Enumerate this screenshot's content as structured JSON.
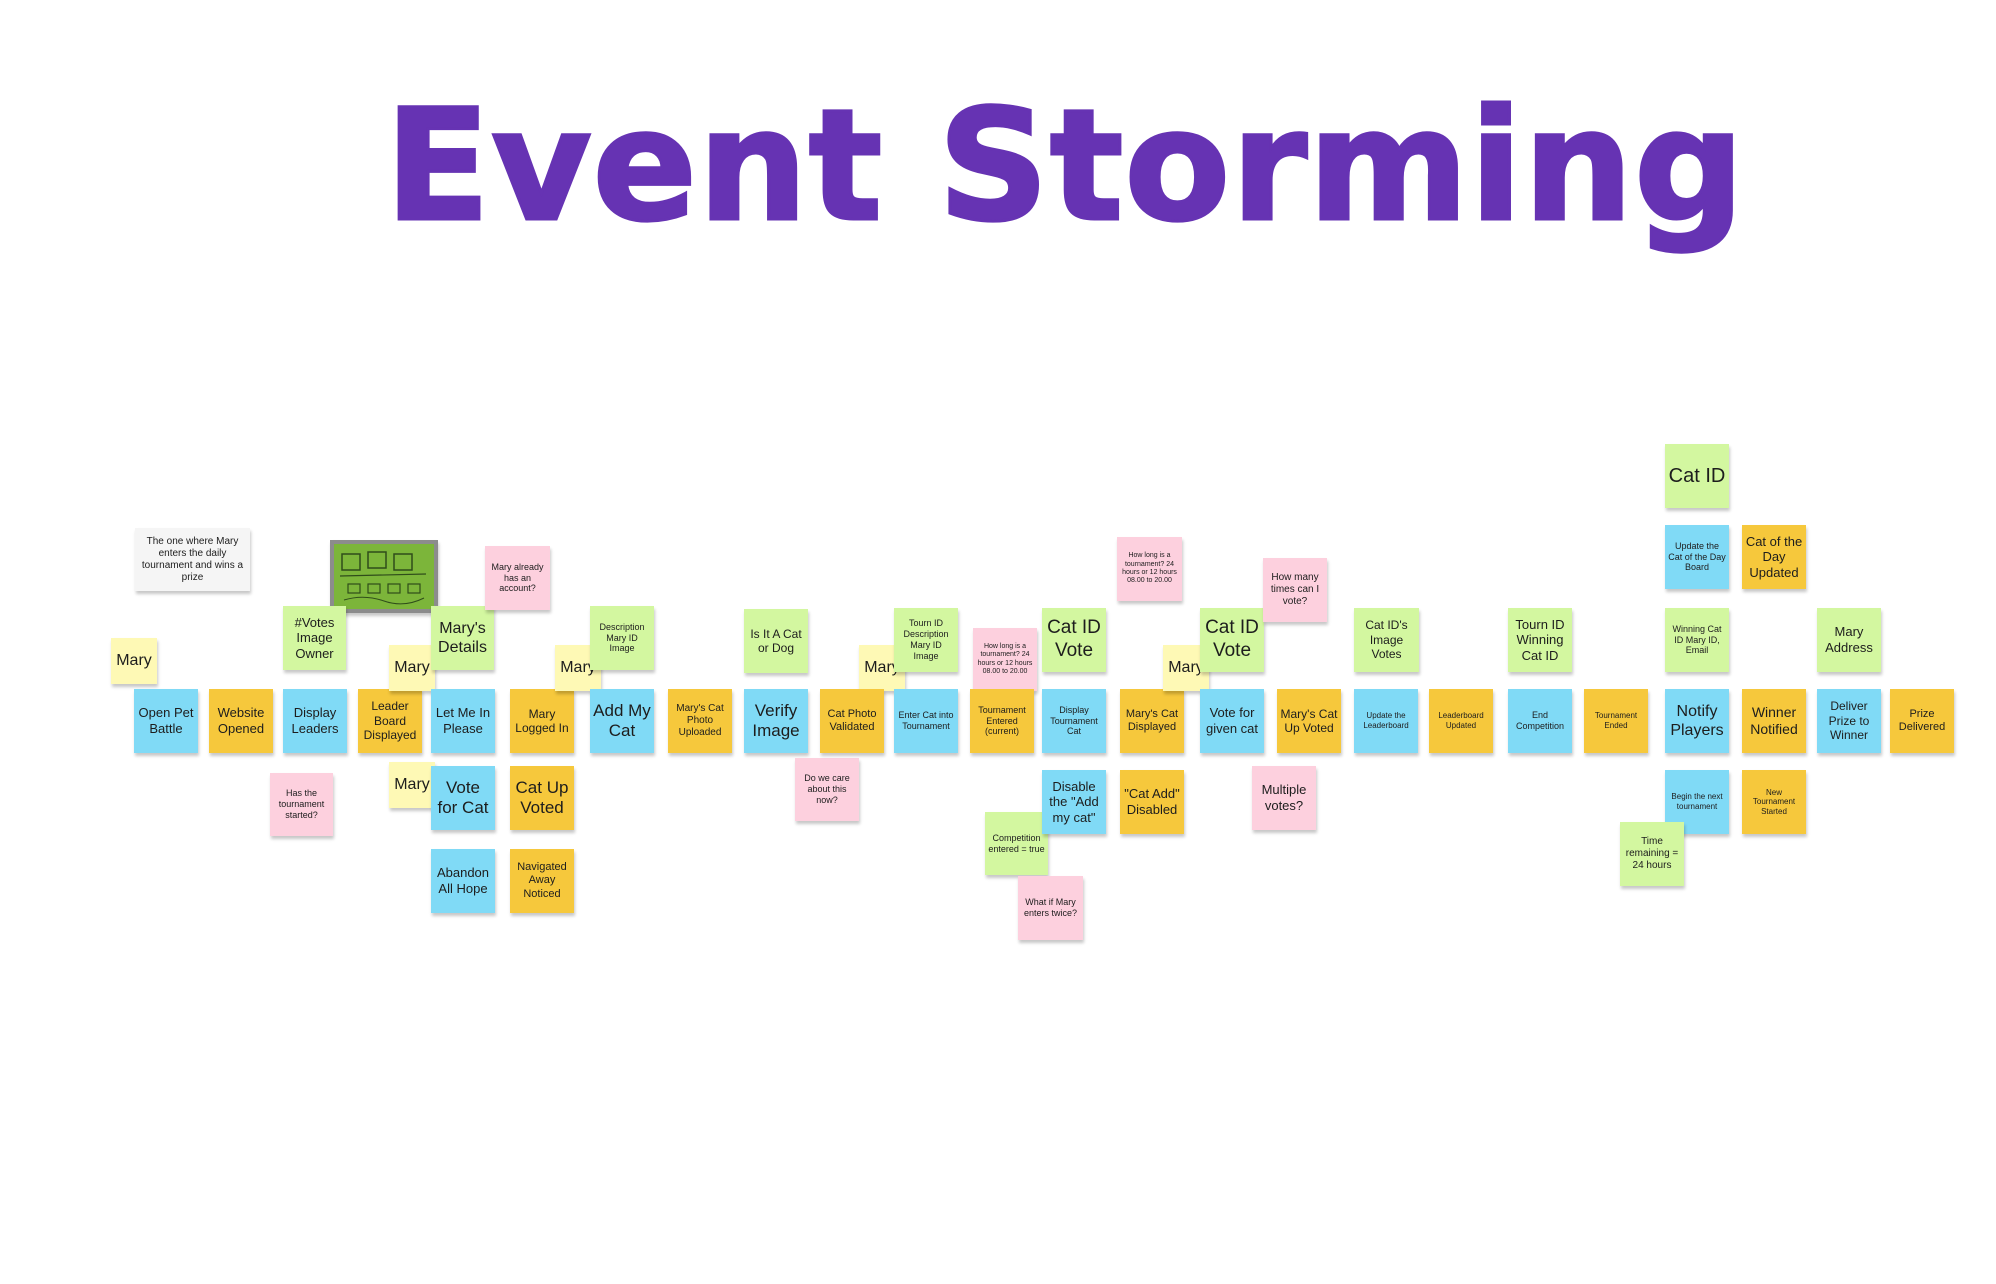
{
  "title": "Event Storming",
  "notes": [
    {
      "text": "The one where Mary enters the daily tournament and wins a prize",
      "color": "white"
    },
    {
      "text": "Mary",
      "color": "yellow"
    },
    {
      "text": "Open Pet Battle",
      "color": "blue"
    },
    {
      "text": "Website Opened",
      "color": "orange"
    },
    {
      "text": "#Votes Image Owner",
      "color": "green"
    },
    {
      "text": "Display Leaders",
      "color": "blue"
    },
    {
      "text": "Has the tournament started?",
      "color": "pink"
    },
    {
      "text": "Leader Board Displayed",
      "color": "orange"
    },
    {
      "text": "Mary",
      "color": "yellow"
    },
    {
      "text": "Mary",
      "color": "yellow"
    },
    {
      "text": "Mary's Details",
      "color": "green"
    },
    {
      "text": "Let Me In Please",
      "color": "blue"
    },
    {
      "text": "Vote for Cat",
      "color": "blue"
    },
    {
      "text": "Abandon All Hope",
      "color": "blue"
    },
    {
      "text": "Mary already has an account?",
      "color": "pink"
    },
    {
      "text": "Mary Logged In",
      "color": "orange"
    },
    {
      "text": "Cat Up Voted",
      "color": "orange"
    },
    {
      "text": "Navigated Away Noticed",
      "color": "orange"
    },
    {
      "text": "Mary",
      "color": "yellow"
    },
    {
      "text": "Description Mary ID Image",
      "color": "green"
    },
    {
      "text": "Add My Cat",
      "color": "blue"
    },
    {
      "text": "Mary's Cat Photo Uploaded",
      "color": "orange"
    },
    {
      "text": "Is It A Cat or Dog",
      "color": "green"
    },
    {
      "text": "Verify Image",
      "color": "blue"
    },
    {
      "text": "Do we care about this now?",
      "color": "pink"
    },
    {
      "text": "Mary",
      "color": "yellow"
    },
    {
      "text": "Cat Photo Validated",
      "color": "orange"
    },
    {
      "text": "Tourn ID Description Mary ID Image",
      "color": "green"
    },
    {
      "text": "Enter Cat into Tournament",
      "color": "blue"
    },
    {
      "text": "How long is a tournament? 24 hours or 12 hours 08.00 to 20.00",
      "color": "pink"
    },
    {
      "text": "Tournament Entered (current)",
      "color": "orange"
    },
    {
      "text": "Competition entered = true",
      "color": "green"
    },
    {
      "text": "What if Mary enters twice?",
      "color": "pink"
    },
    {
      "text": "Cat ID Vote",
      "color": "green"
    },
    {
      "text": "Display Tournament Cat",
      "color": "blue"
    },
    {
      "text": "Disable the \"Add my cat\"",
      "color": "blue"
    },
    {
      "text": "How long is a tournament? 24 hours or 12 hours 08.00 to 20.00",
      "color": "pink"
    },
    {
      "text": "Mary's Cat Displayed",
      "color": "orange"
    },
    {
      "text": "\"Cat Add\" Disabled",
      "color": "orange"
    },
    {
      "text": "Mary",
      "color": "yellow"
    },
    {
      "text": "Cat ID Vote",
      "color": "green"
    },
    {
      "text": "Vote for given cat",
      "color": "blue"
    },
    {
      "text": "How many times can I vote?",
      "color": "pink"
    },
    {
      "text": "Mary's Cat Up Voted",
      "color": "orange"
    },
    {
      "text": "Multiple votes?",
      "color": "pink"
    },
    {
      "text": "Cat ID's Image Votes",
      "color": "green"
    },
    {
      "text": "Update the Leaderboard",
      "color": "blue"
    },
    {
      "text": "Leaderboard Updated",
      "color": "orange"
    },
    {
      "text": "Tourn ID Winning Cat ID",
      "color": "green"
    },
    {
      "text": "End Competition",
      "color": "blue"
    },
    {
      "text": "Tournament Ended",
      "color": "orange"
    },
    {
      "text": "Cat ID",
      "color": "green"
    },
    {
      "text": "Update the Cat of the Day Board",
      "color": "blue"
    },
    {
      "text": "Winning Cat ID Mary ID, Email",
      "color": "green"
    },
    {
      "text": "Notify Players",
      "color": "blue"
    },
    {
      "text": "Begin the next tournament",
      "color": "blue"
    },
    {
      "text": "Time remaining = 24 hours",
      "color": "green"
    },
    {
      "text": "Cat of the Day Updated",
      "color": "orange"
    },
    {
      "text": "Winner Notified",
      "color": "orange"
    },
    {
      "text": "New Tournament Started",
      "color": "orange"
    },
    {
      "text": "Mary Address",
      "color": "green"
    },
    {
      "text": "Deliver Prize to Winner",
      "color": "blue"
    },
    {
      "text": "Prize Delivered",
      "color": "orange"
    }
  ]
}
